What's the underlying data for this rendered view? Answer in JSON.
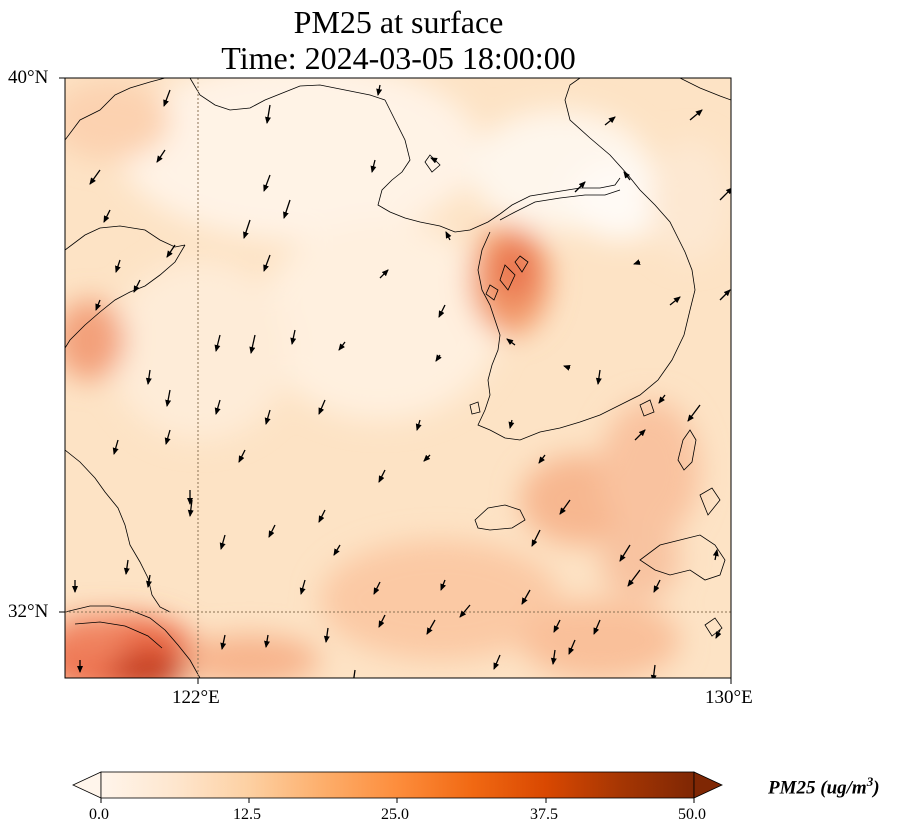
{
  "title": "PM25 at surface",
  "subtitle": "Time: 2024-03-05 18:00:00",
  "lat_ticks": [
    "40°N",
    "32°N"
  ],
  "lon_ticks": [
    "122°E",
    "130°E"
  ],
  "colorbar": {
    "label_main": "PM25 (ug/m",
    "label_sup": "3",
    "label_end": ")",
    "ticks": [
      "0.0",
      "12.5",
      "25.0",
      "37.5",
      "50.0"
    ],
    "colors": [
      "#fff5eb",
      "#fee6ce",
      "#fdd0a2",
      "#fdae6b",
      "#fd8d3c",
      "#f16913",
      "#d94801",
      "#a63603",
      "#7f2704"
    ]
  },
  "colors": {
    "land_line": "#000000",
    "grid": "#8b7355",
    "frame": "#000000"
  }
}
